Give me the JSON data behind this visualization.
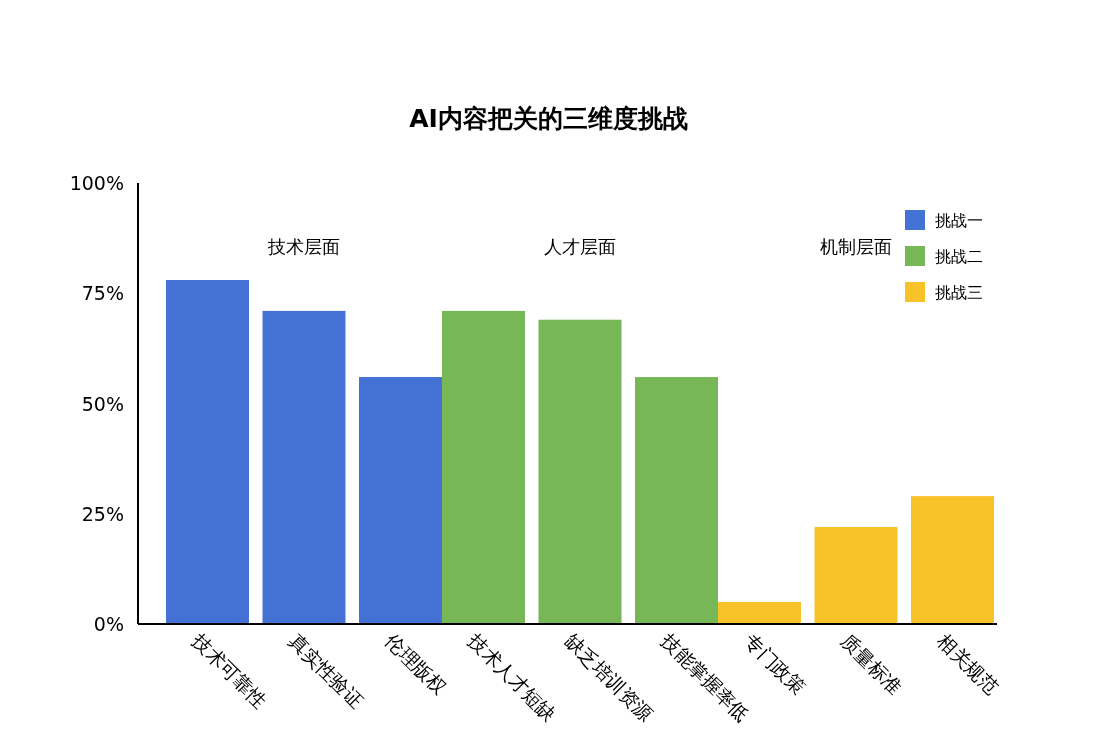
{
  "chart_data": {
    "type": "bar",
    "title": "AI内容把关的三维度挑战",
    "categories": [
      "技术可靠性",
      "真实性验证",
      "伦理版权",
      "技术人才短缺",
      "缺乏培训资源",
      "技能掌握率低",
      "专门政策",
      "质量标准",
      "相关规范"
    ],
    "series": [
      {
        "name": "挑战一",
        "color": "#4472d4",
        "values": [
          78,
          71,
          56,
          null,
          null,
          null,
          null,
          null,
          null
        ]
      },
      {
        "name": "挑战二",
        "color": "#77b756",
        "values": [
          null,
          null,
          null,
          71,
          69,
          56,
          null,
          null,
          null
        ]
      },
      {
        "name": "挑战三",
        "color": "#f7c328",
        "values": [
          null,
          null,
          null,
          null,
          null,
          null,
          5,
          22,
          29
        ]
      }
    ],
    "annotations": [
      "技术层面",
      "人才层面",
      "机制层面"
    ],
    "ylim": [
      0,
      100
    ],
    "yticks": [
      {
        "value": 0,
        "label": "0%"
      },
      {
        "value": 25,
        "label": "25%"
      },
      {
        "value": 50,
        "label": "50%"
      },
      {
        "value": 75,
        "label": "75%"
      },
      {
        "value": 100,
        "label": "100%"
      }
    ],
    "legend": "top right"
  }
}
